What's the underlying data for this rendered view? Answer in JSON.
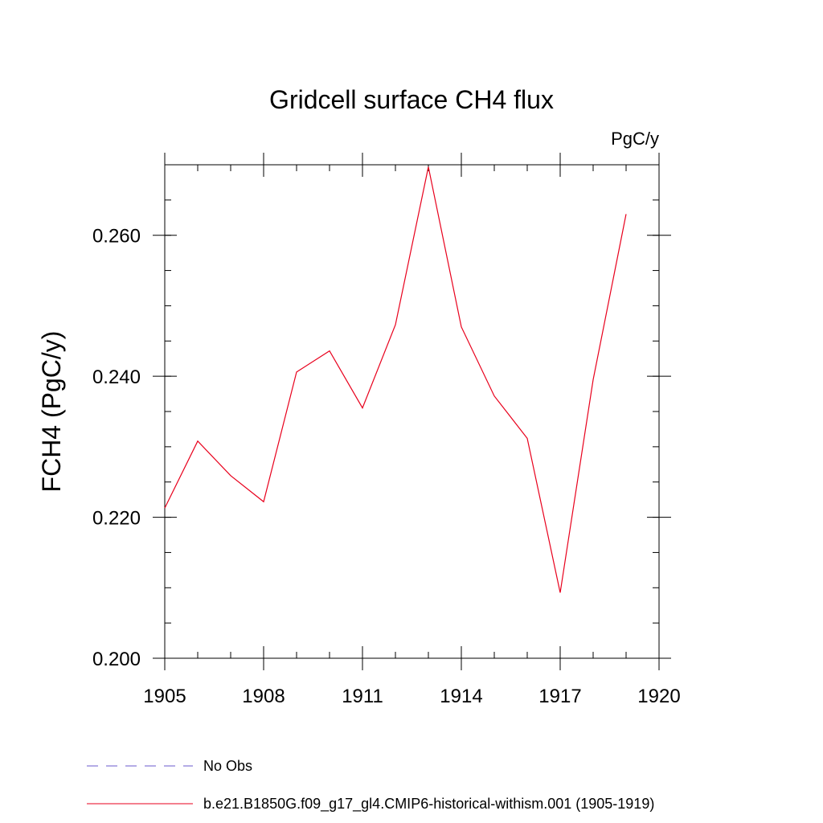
{
  "chart_data": {
    "type": "line",
    "title": "Gridcell surface CH4 flux",
    "units_label": "PgC/y",
    "xlabel": "",
    "ylabel": "FCH4  (PgC/y)",
    "xlim": [
      1905,
      1920
    ],
    "ylim": [
      0.2,
      0.27
    ],
    "x_ticks": [
      1905,
      1908,
      1911,
      1914,
      1917,
      1920
    ],
    "x_tick_labels": [
      "1905",
      "1908",
      "1911",
      "1914",
      "1917",
      "1920"
    ],
    "x_minor_step": 1,
    "y_ticks": [
      0.2,
      0.22,
      0.24,
      0.26
    ],
    "y_tick_labels": [
      "0.200",
      "0.220",
      "0.240",
      "0.260"
    ],
    "y_minor_step": 0.005,
    "grid": false,
    "series": [
      {
        "name": "b.e21.B1850G.f09_g17_gl4.CMIP6-historical-withism.001 (1905-1919)",
        "color": "#e8001c",
        "x": [
          1905,
          1906,
          1907,
          1908,
          1909,
          1910,
          1911,
          1912,
          1913,
          1914,
          1915,
          1916,
          1917,
          1918,
          1919
        ],
        "y": [
          0.2213,
          0.2308,
          0.2259,
          0.2222,
          0.2406,
          0.2436,
          0.2355,
          0.2473,
          0.2697,
          0.247,
          0.2372,
          0.2312,
          0.2093,
          0.2395,
          0.263
        ]
      }
    ],
    "legend": {
      "placement": "bottom",
      "entries": [
        {
          "label": "No Obs",
          "color": "#6a5acd",
          "style": "dashed"
        },
        {
          "label": "b.e21.B1850G.f09_g17_gl4.CMIP6-historical-withism.001 (1905-1919)",
          "color": "#e8001c",
          "style": "solid"
        }
      ]
    }
  }
}
